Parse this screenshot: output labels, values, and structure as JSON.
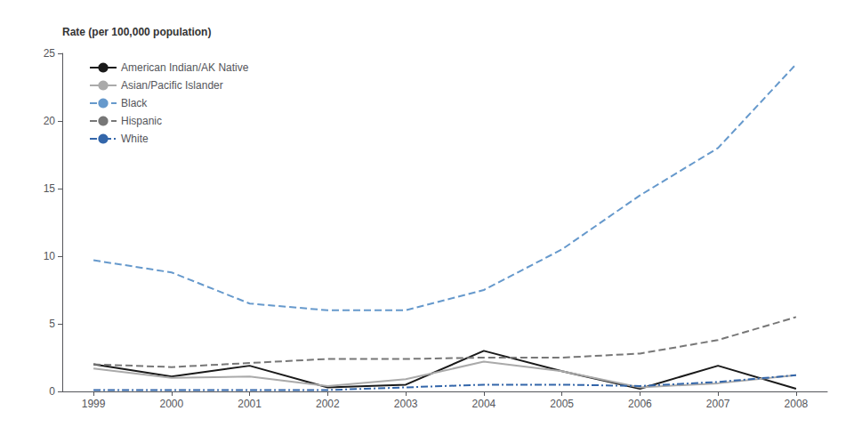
{
  "chart_data": {
    "type": "line",
    "ylabel": "Rate (per 100,000 population)",
    "x": [
      1999,
      2000,
      2001,
      2002,
      2003,
      2004,
      2005,
      2006,
      2007,
      2008
    ],
    "series": [
      {
        "name": "American Indian/AK Native",
        "color": "#1a1a1a",
        "line_style": "solid",
        "values": [
          2.0,
          1.1,
          1.9,
          0.3,
          0.5,
          3.0,
          1.5,
          0.2,
          1.9,
          0.2
        ]
      },
      {
        "name": "Asian/Pacific Islander",
        "color": "#aaaaaa",
        "line_style": "solid",
        "values": [
          1.7,
          1.0,
          1.1,
          0.4,
          0.9,
          2.2,
          1.5,
          0.3,
          0.6,
          1.2
        ]
      },
      {
        "name": "Black",
        "color": "#6699cc",
        "line_style": "dashed",
        "values": [
          9.7,
          8.8,
          6.5,
          6.0,
          6.0,
          7.5,
          10.5,
          14.5,
          18.0,
          24.2
        ]
      },
      {
        "name": "Hispanic",
        "color": "#777777",
        "line_style": "dashed",
        "values": [
          2.0,
          1.8,
          2.1,
          2.4,
          2.4,
          2.5,
          2.5,
          2.8,
          3.8,
          5.5
        ]
      },
      {
        "name": "White",
        "color": "#3366aa",
        "line_style": "dashdot",
        "values": [
          0.1,
          0.1,
          0.1,
          0.1,
          0.3,
          0.5,
          0.5,
          0.4,
          0.7,
          1.2
        ]
      }
    ],
    "xlim": [
      1998.6,
      2008.4
    ],
    "xticks": [
      1999,
      2000,
      2001,
      2002,
      2003,
      2004,
      2005,
      2006,
      2007,
      2008
    ],
    "ylim": [
      0,
      25
    ],
    "yticks": [
      0,
      5,
      10,
      15,
      20,
      25
    ],
    "grid": false,
    "legend": "upper left"
  }
}
